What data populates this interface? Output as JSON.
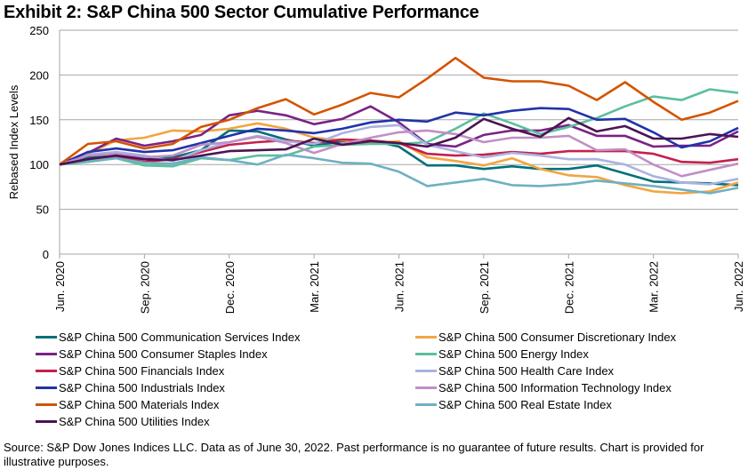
{
  "title": "Exhibit 2: S&P China 500 Sector Cumulative Performance",
  "footer": "Source: S&P Dow Jones Indices LLC. Data as of June 30, 2022. Past performance is no guarantee of future results. Chart is provided for illustrative purposes.",
  "chart_data": {
    "type": "line",
    "title": "Exhibit 2: S&P China 500 Sector Cumulative Performance",
    "xlabel": "",
    "ylabel": "Rebased Index Levels",
    "ylim": [
      0,
      250
    ],
    "yticks": [
      0,
      50,
      100,
      150,
      200,
      250
    ],
    "grid": "horizontal",
    "legend": "bottom",
    "xtick_labels": [
      "Jun. 2020",
      "Sep. 2020",
      "Dec. 2020",
      "Mar. 2021",
      "Jun. 2021",
      "Sep. 2021",
      "Dec. 2021",
      "Mar. 2022",
      "Jun. 2022"
    ],
    "xtick_every": 3,
    "x": [
      "Jun 2020",
      "Jul 2020",
      "Aug 2020",
      "Sep 2020",
      "Oct 2020",
      "Nov 2020",
      "Dec 2020",
      "Jan 2021",
      "Feb 2021",
      "Mar 2021",
      "Apr 2021",
      "May 2021",
      "Jun 2021",
      "Jul 2021",
      "Aug 2021",
      "Sep 2021",
      "Oct 2021",
      "Nov 2021",
      "Dec 2021",
      "Jan 2022",
      "Feb 2022",
      "Mar 2022",
      "Apr 2022",
      "May 2022",
      "Jun 2022"
    ],
    "series": [
      {
        "name": "S&P China 500 Communication Services Index",
        "color": "#00707a",
        "values": [
          100,
          108,
          110,
          106,
          108,
          116,
          138,
          137,
          128,
          121,
          126,
          127,
          120,
          99,
          99,
          95,
          98,
          95,
          95,
          99,
          90,
          81,
          80,
          79,
          77
        ]
      },
      {
        "name": "S&P China 500 Consumer Discretionary Index",
        "color": "#f2a541",
        "values": [
          100,
          112,
          127,
          130,
          138,
          137,
          140,
          146,
          140,
          130,
          127,
          124,
          126,
          108,
          104,
          99,
          107,
          95,
          88,
          86,
          77,
          70,
          68,
          70,
          80
        ]
      },
      {
        "name": "S&P China 500 Consumer Staples Index",
        "color": "#7b2285",
        "values": [
          100,
          113,
          129,
          121,
          126,
          133,
          155,
          160,
          155,
          145,
          151,
          165,
          147,
          123,
          120,
          133,
          138,
          138,
          144,
          132,
          132,
          120,
          121,
          121,
          137
        ]
      },
      {
        "name": "S&P China 500 Energy Index",
        "color": "#5abf9f",
        "values": [
          100,
          103,
          107,
          99,
          98,
          107,
          105,
          110,
          110,
          120,
          122,
          123,
          123,
          125,
          140,
          157,
          146,
          134,
          142,
          152,
          165,
          176,
          172,
          184,
          180
        ]
      },
      {
        "name": "S&P China 500 Financials Index",
        "color": "#c4214d",
        "values": [
          100,
          106,
          108,
          103,
          106,
          114,
          122,
          125,
          127,
          124,
          128,
          127,
          124,
          112,
          110,
          111,
          114,
          112,
          115,
          115,
          115,
          112,
          103,
          102,
          106
        ]
      },
      {
        "name": "S&P China 500 Health Care Index",
        "color": "#aab3e0",
        "values": [
          100,
          111,
          114,
          110,
          104,
          116,
          125,
          132,
          126,
          123,
          135,
          142,
          144,
          122,
          115,
          108,
          113,
          110,
          106,
          106,
          100,
          87,
          80,
          78,
          84
        ]
      },
      {
        "name": "S&P China 500 Industrials Index",
        "color": "#2133a8",
        "values": [
          100,
          114,
          118,
          114,
          116,
          124,
          132,
          140,
          138,
          135,
          140,
          147,
          150,
          148,
          158,
          155,
          160,
          163,
          162,
          150,
          151,
          136,
          119,
          126,
          141
        ]
      },
      {
        "name": "S&P China 500 Information Technology Index",
        "color": "#c08fc5",
        "values": [
          100,
          110,
          112,
          108,
          110,
          122,
          125,
          131,
          124,
          113,
          123,
          130,
          136,
          138,
          134,
          125,
          130,
          130,
          132,
          116,
          117,
          100,
          87,
          94,
          101
        ]
      },
      {
        "name": "S&P China 500 Materials Index",
        "color": "#d35400",
        "values": [
          100,
          123,
          126,
          118,
          123,
          142,
          150,
          163,
          173,
          156,
          167,
          180,
          175,
          196,
          219,
          197,
          193,
          193,
          188,
          172,
          192,
          170,
          150,
          158,
          171
        ]
      },
      {
        "name": "S&P China 500 Real Estate Index",
        "color": "#6fb0c0",
        "values": [
          100,
          104,
          107,
          102,
          101,
          108,
          105,
          100,
          111,
          107,
          102,
          101,
          92,
          76,
          80,
          84,
          77,
          76,
          78,
          82,
          79,
          76,
          72,
          68,
          74
        ]
      },
      {
        "name": "S&P China 500 Utilities Index",
        "color": "#4a1453",
        "values": [
          100,
          106,
          110,
          106,
          105,
          110,
          115,
          116,
          117,
          129,
          122,
          126,
          124,
          120,
          130,
          151,
          140,
          131,
          152,
          137,
          143,
          129,
          129,
          134,
          131
        ]
      }
    ]
  }
}
